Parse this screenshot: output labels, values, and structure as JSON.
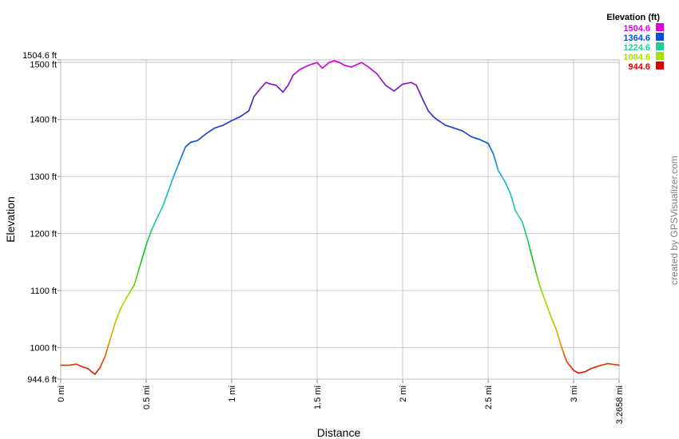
{
  "chart_data": {
    "type": "line",
    "xlabel": "Distance",
    "ylabel": "Elevation",
    "x_unit": "mi",
    "y_unit": "ft",
    "xlim": [
      0,
      3.2658
    ],
    "ylim": [
      944.6,
      1504.6
    ],
    "grid": true,
    "x_ticks": [
      "0 mi",
      "0.5 mi",
      "1 mi",
      "1.5 mi",
      "2 mi",
      "2.5 mi",
      "3 mi",
      "3.2658 mi"
    ],
    "y_ticks": [
      "944.6 ft",
      "1000 ft",
      "1100 ft",
      "1200 ft",
      "1300 ft",
      "1400 ft",
      "1500 ft",
      "1504.6 ft"
    ],
    "legend": {
      "title": "Elevation (ft)",
      "placement": "top-right",
      "entries": [
        {
          "label": "1504.6",
          "color": "#e000e0"
        },
        {
          "label": "1364.6",
          "color": "#0050e0"
        },
        {
          "label": "1224.6",
          "color": "#20d090"
        },
        {
          "label": "1084.6",
          "color": "#a8e000"
        },
        {
          "label": "944.6",
          "color": "#e00000"
        }
      ]
    },
    "colormap": [
      {
        "value": 944.6,
        "color": "#dd0000"
      },
      {
        "value": 1014.6,
        "color": "#e8a000"
      },
      {
        "value": 1084.6,
        "color": "#a8e000"
      },
      {
        "value": 1154.6,
        "color": "#10c020"
      },
      {
        "value": 1224.6,
        "color": "#20d090"
      },
      {
        "value": 1294.6,
        "color": "#20b0e0"
      },
      {
        "value": 1364.6,
        "color": "#0050e0"
      },
      {
        "value": 1434.6,
        "color": "#5020c0"
      },
      {
        "value": 1504.6,
        "color": "#e000e0"
      }
    ],
    "series": [
      {
        "x": [
          0.0,
          0.05,
          0.09,
          0.12,
          0.16,
          0.2,
          0.23,
          0.26,
          0.29,
          0.32,
          0.35,
          0.38,
          0.41,
          0.43,
          0.46,
          0.5,
          0.53,
          0.56,
          0.6,
          0.63,
          0.66,
          0.7,
          0.73,
          0.76,
          0.8,
          0.85,
          0.9,
          0.95,
          1.0,
          1.05,
          1.1,
          1.13,
          1.17,
          1.2,
          1.23,
          1.26,
          1.3,
          1.33,
          1.36,
          1.4,
          1.45,
          1.5,
          1.53,
          1.57,
          1.6,
          1.63,
          1.66,
          1.7,
          1.73,
          1.76,
          1.8,
          1.85,
          1.9,
          1.95,
          2.0,
          2.05,
          2.08,
          2.11,
          2.15,
          2.18,
          2.2,
          2.25,
          2.3,
          2.35,
          2.4,
          2.45,
          2.5,
          2.53,
          2.56,
          2.6,
          2.63,
          2.66,
          2.7,
          2.73,
          2.76,
          2.8,
          2.83,
          2.86,
          2.9,
          2.93,
          2.96,
          3.0,
          3.03,
          3.07,
          3.1,
          3.15,
          3.2,
          3.2658
        ],
        "y": [
          969,
          969,
          971,
          967,
          963,
          953,
          965,
          985,
          1015,
          1045,
          1068,
          1085,
          1100,
          1110,
          1140,
          1180,
          1205,
          1225,
          1250,
          1275,
          1300,
          1330,
          1352,
          1360,
          1363,
          1375,
          1385,
          1390,
          1398,
          1405,
          1415,
          1440,
          1455,
          1465,
          1462,
          1460,
          1448,
          1460,
          1478,
          1488,
          1495,
          1500,
          1490,
          1500,
          1503,
          1500,
          1495,
          1492,
          1496,
          1500,
          1492,
          1480,
          1460,
          1450,
          1462,
          1465,
          1460,
          1440,
          1415,
          1405,
          1400,
          1390,
          1385,
          1380,
          1370,
          1365,
          1358,
          1340,
          1310,
          1290,
          1270,
          1240,
          1220,
          1190,
          1155,
          1110,
          1085,
          1060,
          1030,
          1000,
          975,
          960,
          955,
          958,
          963,
          968,
          972,
          969
        ]
      }
    ]
  },
  "credit": "created by GPSVisualizer.com"
}
